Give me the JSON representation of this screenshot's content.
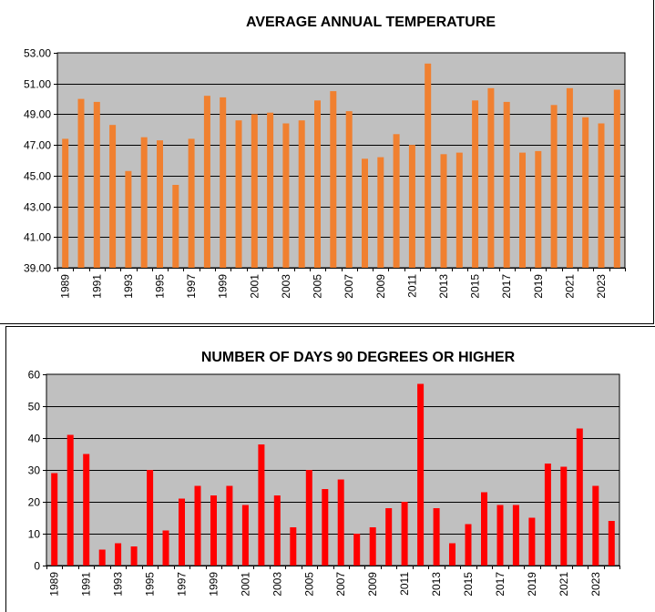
{
  "colors": {
    "plot_bg": "#c0c0c0",
    "grid": "#000000",
    "axis": "#000000",
    "temp_bar": "#f08030",
    "days_bar": "#ff0000"
  },
  "chart_data": [
    {
      "type": "bar",
      "title": "AVERAGE ANNUAL TEMPERATURE",
      "xlabel": "",
      "ylabel": "",
      "ylim": [
        39,
        53
      ],
      "yticks": [
        "39.00",
        "41.00",
        "43.00",
        "45.00",
        "47.00",
        "49.00",
        "51.00",
        "53.00"
      ],
      "ytick_values": [
        39,
        41,
        43,
        45,
        47,
        49,
        51,
        53
      ],
      "grid": true,
      "categories": [
        "1989",
        "1990",
        "1991",
        "1992",
        "1993",
        "1994",
        "1995",
        "1996",
        "1997",
        "1998",
        "1999",
        "2000",
        "2001",
        "2002",
        "2003",
        "2004",
        "2005",
        "2006",
        "2007",
        "2008",
        "2009",
        "2010",
        "2011",
        "2012",
        "2013",
        "2014",
        "2015",
        "2016",
        "2017",
        "2018",
        "2019",
        "2020",
        "2021",
        "2022",
        "2023",
        "2024"
      ],
      "category_labels": [
        "1989",
        "1991",
        "1993",
        "1995",
        "1997",
        "1999",
        "2001",
        "2003",
        "2005",
        "2007",
        "2009",
        "2011",
        "2013",
        "2015",
        "2017",
        "2019",
        "2021",
        "2023"
      ],
      "values": [
        47.4,
        50.0,
        49.8,
        48.3,
        45.3,
        47.5,
        47.3,
        44.4,
        47.4,
        50.2,
        50.1,
        48.6,
        49.0,
        49.1,
        48.4,
        48.6,
        49.9,
        50.5,
        49.2,
        46.1,
        46.2,
        47.7,
        47.0,
        52.3,
        46.4,
        46.5,
        49.9,
        50.7,
        49.8,
        46.5,
        46.6,
        49.6,
        50.7,
        48.8,
        48.4,
        50.6
      ]
    },
    {
      "type": "bar",
      "title": "NUMBER OF DAYS 90 DEGREES OR HIGHER",
      "xlabel": "",
      "ylabel": "",
      "ylim": [
        0,
        60
      ],
      "yticks": [
        "0",
        "10",
        "20",
        "30",
        "40",
        "50",
        "60"
      ],
      "ytick_values": [
        0,
        10,
        20,
        30,
        40,
        50,
        60
      ],
      "grid": true,
      "categories": [
        "1989",
        "1990",
        "1991",
        "1992",
        "1993",
        "1994",
        "1995",
        "1996",
        "1997",
        "1998",
        "1999",
        "2000",
        "2001",
        "2002",
        "2003",
        "2004",
        "2005",
        "2006",
        "2007",
        "2008",
        "2009",
        "2010",
        "2011",
        "2012",
        "2013",
        "2014",
        "2015",
        "2016",
        "2017",
        "2018",
        "2019",
        "2020",
        "2021",
        "2022",
        "2023",
        "2024"
      ],
      "category_labels": [
        "1989",
        "1991",
        "1993",
        "1995",
        "1997",
        "1999",
        "2001",
        "2003",
        "2005",
        "2007",
        "2009",
        "2011",
        "2013",
        "2015",
        "2017",
        "2019",
        "2021",
        "2023"
      ],
      "values": [
        29,
        41,
        35,
        5,
        7,
        6,
        30,
        11,
        21,
        25,
        22,
        25,
        19,
        38,
        22,
        12,
        30,
        24,
        27,
        10,
        12,
        18,
        20,
        57,
        18,
        7,
        13,
        23,
        19,
        19,
        15,
        32,
        31,
        43,
        25,
        14
      ]
    }
  ]
}
